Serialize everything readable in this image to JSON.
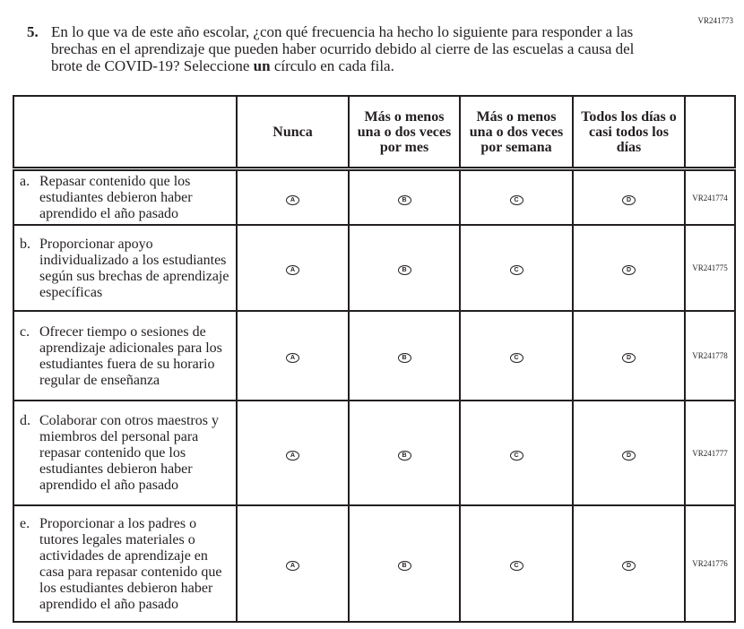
{
  "question_id": "VR241773",
  "question": {
    "number": "5.",
    "text": "En lo que va de este año escolar, ¿con qué frecuencia ha hecho lo siguiente para responder a las brechas en el aprendizaje que pueden haber ocurrido debido al cierre de las escuelas a causa del brote de COVID-19? Seleccione ",
    "emphasis": "un",
    "text_end": " círculo en cada fila."
  },
  "columns": [
    "Nunca",
    "Más o menos una o dos veces por mes",
    "Más o menos una o dos veces por semana",
    "Todos los días o casi todos los días"
  ],
  "bubble_labels": [
    "A",
    "B",
    "C",
    "D"
  ],
  "rows": [
    {
      "letter": "a.",
      "text": "Repasar contenido que los estudiantes debieron haber aprendido el año pasado",
      "id": "VR241774"
    },
    {
      "letter": "b.",
      "text": "Proporcionar apoyo individualizado a los estudiantes según sus brechas de aprendizaje específicas",
      "id": "VR241775"
    },
    {
      "letter": "c.",
      "text": "Ofrecer tiempo o sesiones de aprendizaje adicionales para los estudiantes fuera de su horario regular de enseñanza",
      "id": "VR241778"
    },
    {
      "letter": "d.",
      "text": "Colaborar con otros maestros y miembros del personal para repasar contenido que los estudiantes debieron haber aprendido el año pasado",
      "id": "VR241777"
    },
    {
      "letter": "e.",
      "text": "Proporcionar a los padres o tutores legales materiales o actividades de aprendizaje en casa para repasar contenido que los estudiantes debieron haber aprendido el año pasado",
      "id": "VR241776"
    }
  ]
}
